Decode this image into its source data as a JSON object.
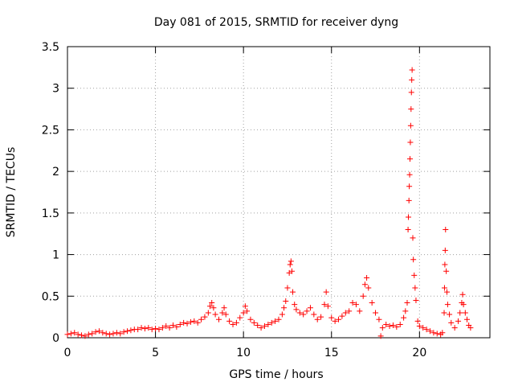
{
  "chart_data": {
    "type": "scatter",
    "title": "Day 081 of 2015, SRMTID for receiver dyng",
    "xlabel": "GPS time / hours",
    "ylabel": "SRMTID / TECUs",
    "xlim": [
      0,
      24
    ],
    "ylim": [
      0,
      3.5
    ],
    "xticks": [
      0,
      5,
      10,
      15,
      20
    ],
    "xtick_labels": [
      "0",
      "5",
      "10",
      "15",
      "20"
    ],
    "yticks": [
      0,
      0.5,
      1,
      1.5,
      2,
      2.5,
      3,
      3.5
    ],
    "ytick_labels": [
      "0",
      "0.5",
      "1",
      "1.5",
      "2",
      "2.5",
      "3",
      "3.5"
    ],
    "grid": true,
    "marker": "+",
    "color": "#ff0000",
    "series": [
      {
        "name": "SRMTID",
        "points": [
          [
            0.0,
            0.04
          ],
          [
            0.2,
            0.05
          ],
          [
            0.4,
            0.06
          ],
          [
            0.6,
            0.04
          ],
          [
            0.8,
            0.03
          ],
          [
            1.0,
            0.02
          ],
          [
            1.2,
            0.04
          ],
          [
            1.4,
            0.05
          ],
          [
            1.6,
            0.07
          ],
          [
            1.8,
            0.08
          ],
          [
            2.0,
            0.06
          ],
          [
            2.2,
            0.05
          ],
          [
            2.4,
            0.04
          ],
          [
            2.6,
            0.05
          ],
          [
            2.8,
            0.06
          ],
          [
            3.0,
            0.05
          ],
          [
            3.2,
            0.07
          ],
          [
            3.4,
            0.08
          ],
          [
            3.6,
            0.09
          ],
          [
            3.8,
            0.1
          ],
          [
            4.0,
            0.1
          ],
          [
            4.2,
            0.12
          ],
          [
            4.4,
            0.11
          ],
          [
            4.6,
            0.12
          ],
          [
            4.8,
            0.1
          ],
          [
            5.0,
            0.11
          ],
          [
            5.2,
            0.1
          ],
          [
            5.4,
            0.12
          ],
          [
            5.6,
            0.14
          ],
          [
            5.8,
            0.12
          ],
          [
            6.0,
            0.15
          ],
          [
            6.2,
            0.13
          ],
          [
            6.4,
            0.16
          ],
          [
            6.6,
            0.18
          ],
          [
            6.8,
            0.17
          ],
          [
            7.0,
            0.19
          ],
          [
            7.2,
            0.2
          ],
          [
            7.4,
            0.18
          ],
          [
            7.6,
            0.22
          ],
          [
            7.8,
            0.25
          ],
          [
            8.0,
            0.3
          ],
          [
            8.1,
            0.38
          ],
          [
            8.2,
            0.42
          ],
          [
            8.3,
            0.36
          ],
          [
            8.4,
            0.28
          ],
          [
            8.6,
            0.22
          ],
          [
            8.8,
            0.3
          ],
          [
            8.9,
            0.36
          ],
          [
            9.0,
            0.28
          ],
          [
            9.2,
            0.2
          ],
          [
            9.4,
            0.16
          ],
          [
            9.6,
            0.18
          ],
          [
            9.8,
            0.24
          ],
          [
            10.0,
            0.3
          ],
          [
            10.1,
            0.38
          ],
          [
            10.2,
            0.32
          ],
          [
            10.4,
            0.22
          ],
          [
            10.6,
            0.18
          ],
          [
            10.8,
            0.15
          ],
          [
            11.0,
            0.12
          ],
          [
            11.2,
            0.14
          ],
          [
            11.4,
            0.16
          ],
          [
            11.6,
            0.18
          ],
          [
            11.8,
            0.2
          ],
          [
            12.0,
            0.22
          ],
          [
            12.2,
            0.28
          ],
          [
            12.3,
            0.36
          ],
          [
            12.4,
            0.44
          ],
          [
            12.5,
            0.6
          ],
          [
            12.6,
            0.78
          ],
          [
            12.65,
            0.88
          ],
          [
            12.7,
            0.92
          ],
          [
            12.75,
            0.8
          ],
          [
            12.8,
            0.55
          ],
          [
            12.9,
            0.4
          ],
          [
            13.0,
            0.34
          ],
          [
            13.2,
            0.3
          ],
          [
            13.4,
            0.28
          ],
          [
            13.6,
            0.32
          ],
          [
            13.8,
            0.36
          ],
          [
            14.0,
            0.28
          ],
          [
            14.2,
            0.22
          ],
          [
            14.4,
            0.25
          ],
          [
            14.6,
            0.4
          ],
          [
            14.7,
            0.55
          ],
          [
            14.8,
            0.38
          ],
          [
            15.0,
            0.24
          ],
          [
            15.2,
            0.2
          ],
          [
            15.4,
            0.22
          ],
          [
            15.6,
            0.26
          ],
          [
            15.8,
            0.3
          ],
          [
            16.0,
            0.32
          ],
          [
            16.2,
            0.42
          ],
          [
            16.4,
            0.4
          ],
          [
            16.6,
            0.32
          ],
          [
            16.8,
            0.5
          ],
          [
            16.9,
            0.64
          ],
          [
            17.0,
            0.72
          ],
          [
            17.1,
            0.6
          ],
          [
            17.3,
            0.42
          ],
          [
            17.5,
            0.3
          ],
          [
            17.7,
            0.22
          ],
          [
            17.8,
            0.02
          ],
          [
            17.9,
            0.12
          ],
          [
            18.1,
            0.16
          ],
          [
            18.3,
            0.14
          ],
          [
            18.5,
            0.15
          ],
          [
            18.7,
            0.13
          ],
          [
            18.9,
            0.16
          ],
          [
            19.1,
            0.24
          ],
          [
            19.2,
            0.32
          ],
          [
            19.3,
            0.42
          ],
          [
            19.35,
            1.3
          ],
          [
            19.37,
            1.45
          ],
          [
            19.4,
            1.65
          ],
          [
            19.42,
            1.82
          ],
          [
            19.44,
            1.96
          ],
          [
            19.46,
            2.15
          ],
          [
            19.48,
            2.35
          ],
          [
            19.5,
            2.55
          ],
          [
            19.52,
            2.75
          ],
          [
            19.54,
            2.95
          ],
          [
            19.56,
            3.1
          ],
          [
            19.58,
            3.22
          ],
          [
            19.62,
            1.2
          ],
          [
            19.65,
            0.94
          ],
          [
            19.7,
            0.75
          ],
          [
            19.75,
            0.6
          ],
          [
            19.8,
            0.45
          ],
          [
            19.9,
            0.2
          ],
          [
            20.0,
            0.14
          ],
          [
            20.2,
            0.12
          ],
          [
            20.4,
            0.1
          ],
          [
            20.6,
            0.08
          ],
          [
            20.8,
            0.06
          ],
          [
            21.0,
            0.05
          ],
          [
            21.2,
            0.04
          ],
          [
            21.3,
            0.06
          ],
          [
            21.4,
            0.3
          ],
          [
            21.42,
            0.6
          ],
          [
            21.44,
            0.88
          ],
          [
            21.46,
            1.05
          ],
          [
            21.48,
            1.3
          ],
          [
            21.52,
            0.8
          ],
          [
            21.56,
            0.55
          ],
          [
            21.6,
            0.4
          ],
          [
            21.7,
            0.28
          ],
          [
            21.8,
            0.18
          ],
          [
            22.0,
            0.12
          ],
          [
            22.2,
            0.2
          ],
          [
            22.3,
            0.3
          ],
          [
            22.4,
            0.42
          ],
          [
            22.45,
            0.52
          ],
          [
            22.5,
            0.4
          ],
          [
            22.6,
            0.3
          ],
          [
            22.7,
            0.22
          ],
          [
            22.8,
            0.15
          ],
          [
            22.9,
            0.12
          ]
        ]
      }
    ]
  }
}
